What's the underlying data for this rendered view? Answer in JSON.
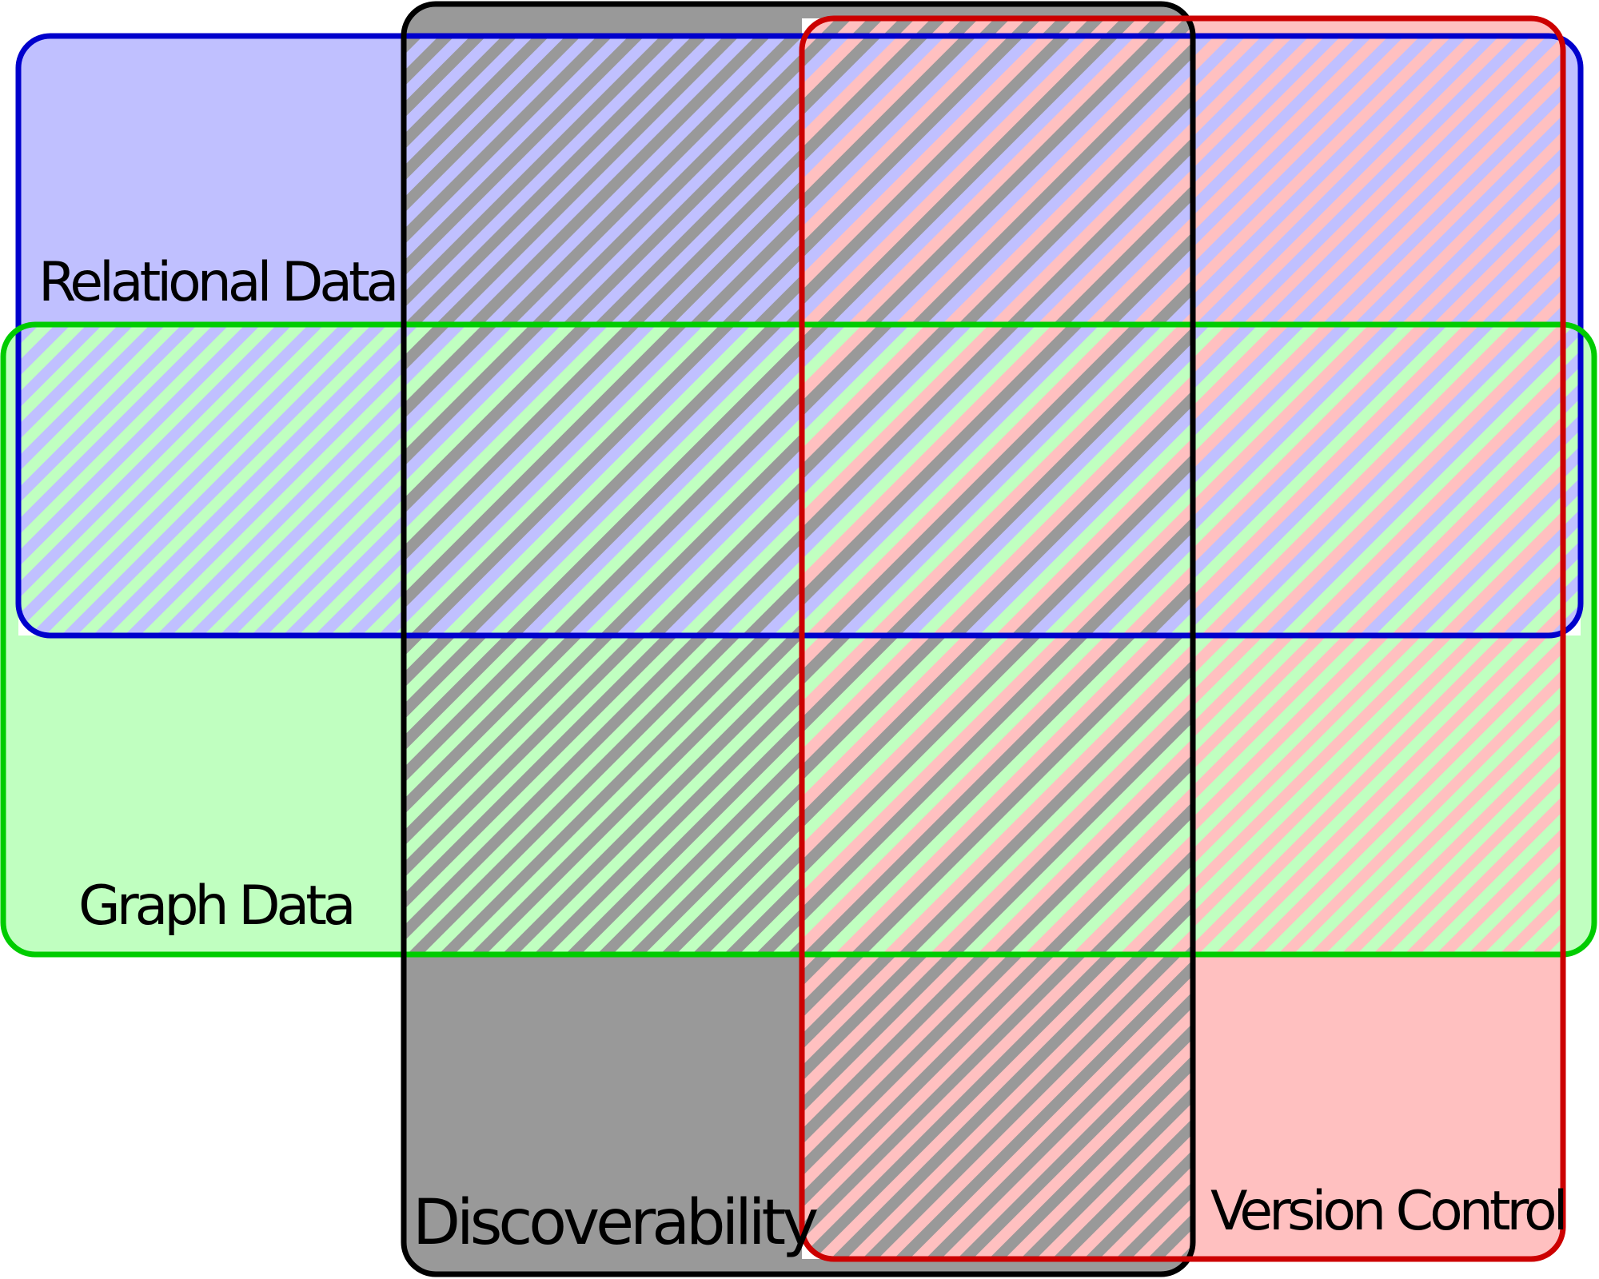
{
  "sets": [
    {
      "id": "relational",
      "label": "Relational Data",
      "fill": "#c0c0ff",
      "stroke": "#0000cc"
    },
    {
      "id": "graph",
      "label": "Graph Data",
      "fill": "#c0ffc0",
      "stroke": "#00cc00"
    },
    {
      "id": "discoverability",
      "label": "Discoverability",
      "fill": "#999999",
      "stroke": "#000000"
    },
    {
      "id": "version",
      "label": "Version Control",
      "fill": "#ffc0c0",
      "stroke": "#cc0000"
    }
  ]
}
